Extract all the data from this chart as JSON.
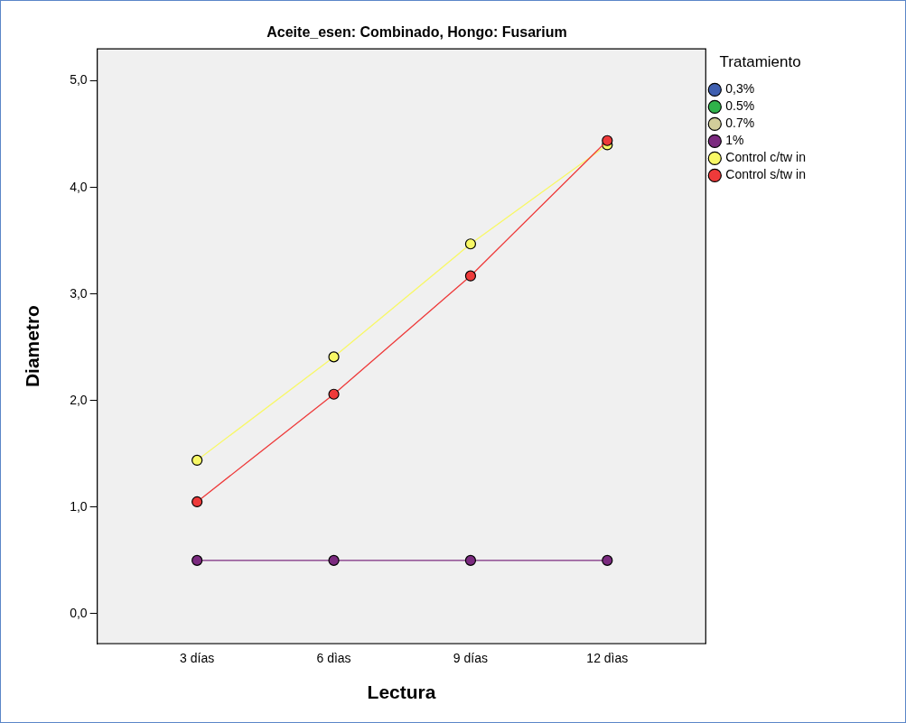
{
  "chart_data": {
    "type": "line",
    "title": "Aceite_esen: Combinado, Hongo: Fusarium",
    "xlabel": "Lectura",
    "ylabel": "Diametro",
    "legend_title": "Tratamiento",
    "categories": [
      "3 días",
      "6 dìas",
      "9 días",
      "12 dìas"
    ],
    "series": [
      {
        "name": "0,3%",
        "color": "#3f5fb0",
        "values": [
          null,
          null,
          null,
          null
        ]
      },
      {
        "name": "0.5%",
        "color": "#2fb24a",
        "values": [
          null,
          null,
          null,
          null
        ]
      },
      {
        "name": "0.7%",
        "color": "#d2cd9a",
        "values": [
          null,
          null,
          null,
          null
        ]
      },
      {
        "name": "1%",
        "color": "#7b2a7f",
        "values": [
          0.5,
          0.5,
          0.5,
          0.5
        ]
      },
      {
        "name": "Control c/tw in",
        "color": "#f8f866",
        "values": [
          1.44,
          2.41,
          3.47,
          4.4
        ]
      },
      {
        "name": "Control s/tw in",
        "color": "#ee3a3a",
        "values": [
          1.05,
          2.06,
          3.17,
          4.44
        ]
      }
    ],
    "ylim": [
      -0.28,
      5.3
    ],
    "yticks": [
      {
        "value": 0,
        "label": "0,0"
      },
      {
        "value": 1,
        "label": "1,0"
      },
      {
        "value": 2,
        "label": "2,0"
      },
      {
        "value": 3,
        "label": "3,0"
      },
      {
        "value": 4,
        "label": "4,0"
      },
      {
        "value": 5,
        "label": "5,0"
      }
    ],
    "grid": false,
    "legend": "top right",
    "marker": "circle",
    "line_style": "solid"
  }
}
